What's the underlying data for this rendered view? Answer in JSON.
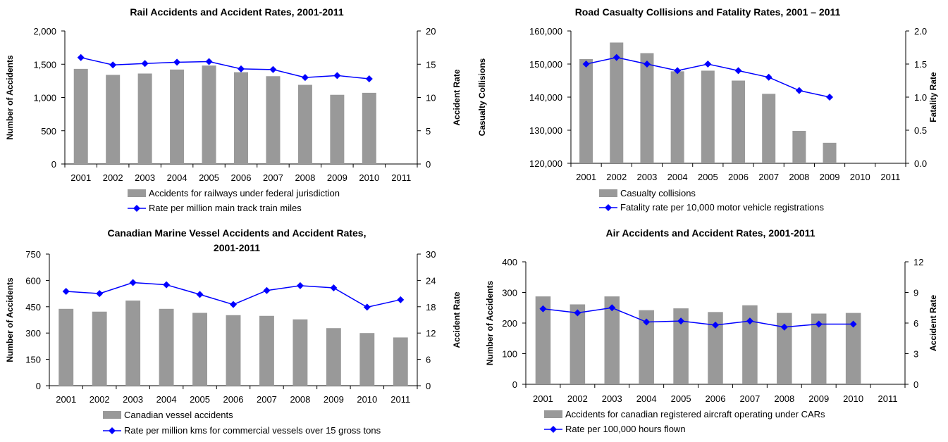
{
  "chart_data": [
    {
      "type": "bar",
      "title": [
        "Rail Accidents and Accident Rates, 2001-2011"
      ],
      "categories": [
        "2001",
        "2002",
        "2003",
        "2004",
        "2005",
        "2006",
        "2007",
        "2008",
        "2009",
        "2010",
        "2011"
      ],
      "ylabel": "Number of Accidents",
      "y2label": "Accident Rate",
      "ylim": [
        0,
        2000
      ],
      "y2lim": [
        0,
        20
      ],
      "yticks": [
        "0",
        "500",
        "1,000",
        "1,500",
        "2,000"
      ],
      "y2ticks": [
        "0",
        "5",
        "10",
        "15",
        "20"
      ],
      "series": [
        {
          "name": "Accidents for railways under federal jurisdiction",
          "axis": "left",
          "kind": "bar",
          "values": [
            1430,
            1340,
            1360,
            1420,
            1480,
            1380,
            1320,
            1190,
            1040,
            1070,
            null
          ]
        },
        {
          "name": "Rate per million main track train miles",
          "axis": "right",
          "kind": "line",
          "values": [
            16.0,
            14.9,
            15.1,
            15.3,
            15.4,
            14.3,
            14.2,
            13.0,
            13.3,
            12.8,
            null
          ]
        }
      ],
      "colors": {
        "bar": "#999999",
        "line": "#0000ff"
      },
      "legend_position": "bottom"
    },
    {
      "type": "bar",
      "title": [
        "Road Casualty Collisions and Fatality Rates, 2001 – 2011"
      ],
      "categories": [
        "2001",
        "2002",
        "2003",
        "2004",
        "2005",
        "2006",
        "2007",
        "2008",
        "2009",
        "2010",
        "2011"
      ],
      "ylabel": "Casualty Collisions",
      "y2label": "Fatality Rate",
      "ylim": [
        120000,
        160000
      ],
      "y2lim": [
        0,
        2
      ],
      "yticks": [
        "120,000",
        "130,000",
        "140,000",
        "150,000",
        "160,000"
      ],
      "y2ticks": [
        "0.0",
        "0.5",
        "1.0",
        "1.5",
        "2.0"
      ],
      "series": [
        {
          "name": "Casualty collisions",
          "axis": "left",
          "kind": "bar",
          "values": [
            151500,
            156500,
            153300,
            147800,
            148000,
            145000,
            141000,
            129800,
            126200,
            null,
            null
          ]
        },
        {
          "name": "Fatality rate per 10,000 motor vehicle registrations",
          "axis": "right",
          "kind": "line",
          "values": [
            1.5,
            1.6,
            1.5,
            1.4,
            1.5,
            1.4,
            1.3,
            1.1,
            1.0,
            null,
            null
          ]
        }
      ],
      "colors": {
        "bar": "#999999",
        "line": "#0000ff"
      },
      "legend_position": "bottom"
    },
    {
      "type": "bar",
      "title": [
        "Canadian Marine Vessel Accidents and Accident Rates,",
        "2001-2011"
      ],
      "categories": [
        "2001",
        "2002",
        "2003",
        "2004",
        "2005",
        "2006",
        "2007",
        "2008",
        "2009",
        "2010",
        "2011"
      ],
      "ylabel": "Number of Accidents",
      "y2label": "Accident Rate",
      "ylim": [
        0,
        750
      ],
      "y2lim": [
        0,
        30
      ],
      "yticks": [
        "0",
        "150",
        "300",
        "450",
        "600",
        "750"
      ],
      "y2ticks": [
        "0",
        "6",
        "12",
        "18",
        "24",
        "30"
      ],
      "series": [
        {
          "name": "Canadian vessel accidents",
          "axis": "left",
          "kind": "bar",
          "values": [
            438,
            422,
            485,
            438,
            415,
            402,
            398,
            378,
            328,
            300,
            275
          ]
        },
        {
          "name": "Rate per million kms for commercial vessels over 15 gross tons",
          "axis": "right",
          "kind": "line",
          "values": [
            21.5,
            21.0,
            23.5,
            23.0,
            20.8,
            18.5,
            21.7,
            22.8,
            22.3,
            17.9,
            19.6
          ]
        }
      ],
      "colors": {
        "bar": "#999999",
        "line": "#0000ff"
      },
      "legend_position": "bottom"
    },
    {
      "type": "bar",
      "title": [
        "Air Accidents and Accident Rates, 2001-2011"
      ],
      "categories": [
        "2001",
        "2002",
        "2003",
        "2004",
        "2005",
        "2006",
        "2007",
        "2008",
        "2009",
        "2010",
        "2011"
      ],
      "ylabel": "Number of Accidents",
      "y2label": "Accident Rate",
      "ylim": [
        0,
        400
      ],
      "y2lim": [
        0,
        12
      ],
      "yticks": [
        "0",
        "100",
        "200",
        "300",
        "400"
      ],
      "y2ticks": [
        "0",
        "3",
        "6",
        "9",
        "12"
      ],
      "series": [
        {
          "name": "Accidents for canadian registered aircraft operating under CARs",
          "axis": "left",
          "kind": "bar",
          "values": [
            287,
            261,
            287,
            242,
            248,
            236,
            258,
            233,
            231,
            233,
            null
          ]
        },
        {
          "name": "Rate per 100,000 hours flown",
          "axis": "right",
          "kind": "line",
          "values": [
            7.4,
            7.0,
            7.5,
            6.1,
            6.2,
            5.8,
            6.2,
            5.6,
            5.9,
            5.9,
            null
          ]
        }
      ],
      "colors": {
        "bar": "#999999",
        "line": "#0000ff"
      },
      "legend_position": "bottom"
    }
  ]
}
